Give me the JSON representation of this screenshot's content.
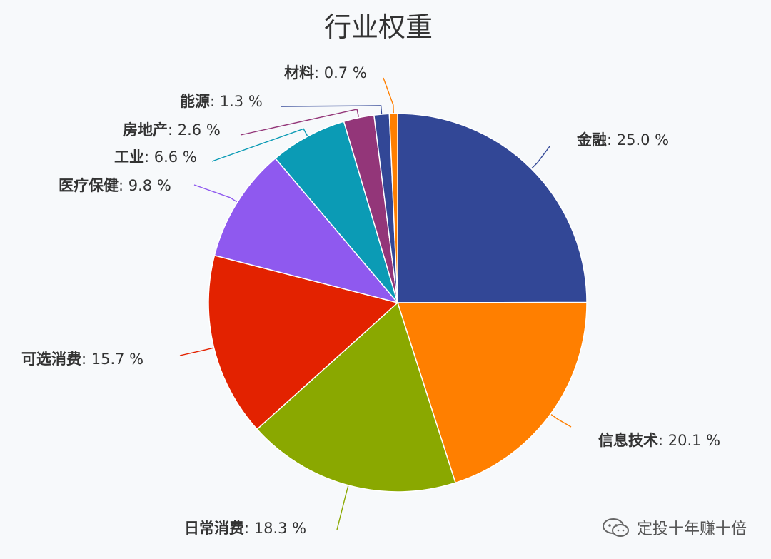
{
  "chart_data": {
    "type": "pie",
    "title": "行业权重",
    "start_angle_deg": 0,
    "direction": "clockwise",
    "slices": [
      {
        "label": "金融",
        "value": 25.0,
        "display": "25.0 %",
        "color": "#324796",
        "side": "right"
      },
      {
        "label": "信息技术",
        "value": 20.1,
        "display": "20.1 %",
        "color": "#ff7f00",
        "side": "right"
      },
      {
        "label": "日常消费",
        "value": 18.3,
        "display": "18.3 %",
        "color": "#8aa800",
        "side": "left"
      },
      {
        "label": "可选消费",
        "value": 15.7,
        "display": "15.7 %",
        "color": "#e32200",
        "side": "left"
      },
      {
        "label": "医疗保健",
        "value": 9.8,
        "display": "9.8 %",
        "color": "#8f59ef",
        "side": "left"
      },
      {
        "label": "工业",
        "value": 6.6,
        "display": "6.6 %",
        "color": "#0b9bb5",
        "side": "left"
      },
      {
        "label": "房地产",
        "value": 2.6,
        "display": "2.6 %",
        "color": "#933679",
        "side": "left"
      },
      {
        "label": "能源",
        "value": 1.3,
        "display": "1.3 %",
        "color": "#324796",
        "side": "left"
      },
      {
        "label": "材料",
        "value": 0.7,
        "display": "0.7 %",
        "color": "#ff7f00",
        "side": "left"
      }
    ],
    "legend": "none"
  },
  "watermark": {
    "text": "定投十年赚十倍",
    "icon": "wechat-icon"
  }
}
